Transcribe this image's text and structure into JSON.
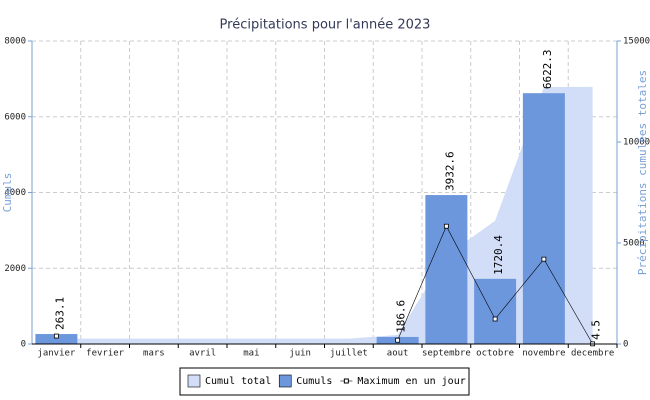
{
  "chart_data": {
    "type": "combo",
    "title": "Précipitations pour l'année 2023",
    "y_label": "Cumuls",
    "y2_label": "Précipitations cumulées totales",
    "categories": [
      "janvier",
      "fevrier",
      "mars",
      "avril",
      "mai",
      "juin",
      "juillet",
      "aout",
      "septembre",
      "octobre",
      "novembre",
      "decembre"
    ],
    "ylim": [
      0,
      8000
    ],
    "yticks": [
      0,
      2000,
      4000,
      6000,
      8000
    ],
    "y2lim": [
      0,
      15000
    ],
    "y2ticks": [
      0,
      5000,
      10000,
      15000
    ],
    "grid": true,
    "legend": "bottom",
    "series": [
      {
        "name": "Cumul total",
        "kind": "area",
        "axis": "y2",
        "color": "#d2def7",
        "values": [
          263.1,
          263.1,
          263.1,
          263.1,
          263.1,
          263.1,
          263.1,
          449.7,
          4382.3,
          6102.7,
          12725,
          12729.5
        ]
      },
      {
        "name": "Cumuls",
        "kind": "bar",
        "color": "#6d97dd",
        "values": [
          263.1,
          null,
          null,
          null,
          null,
          null,
          null,
          186.6,
          3932.6,
          1720.4,
          6622.3,
          4.5
        ]
      },
      {
        "name": "Maximum en un jour",
        "kind": "line",
        "color": "#000000",
        "values": [
          210,
          null,
          null,
          null,
          null,
          null,
          null,
          100,
          3110,
          660,
          2240,
          4
        ]
      }
    ]
  }
}
